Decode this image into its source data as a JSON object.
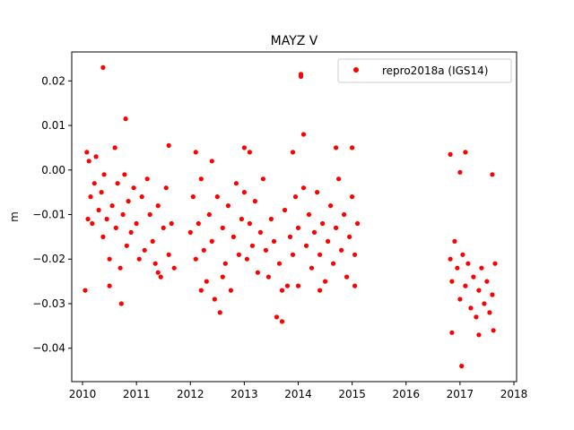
{
  "chart_data": {
    "type": "scatter",
    "title": "MAYZ V",
    "xlabel": "",
    "ylabel": "m",
    "xlim": [
      2009.8,
      2018.05
    ],
    "ylim": [
      -0.0475,
      0.0265
    ],
    "xticks": [
      2010,
      2011,
      2012,
      2013,
      2014,
      2015,
      2016,
      2017,
      2018
    ],
    "xtick_labels": [
      "2010",
      "2011",
      "2012",
      "2013",
      "2014",
      "2015",
      "2016",
      "2017",
      "2018"
    ],
    "yticks": [
      -0.04,
      -0.03,
      -0.02,
      -0.01,
      0.0,
      0.01,
      0.02
    ],
    "ytick_labels": [
      "−0.04",
      "−0.03",
      "−0.02",
      "−0.01",
      "0.00",
      "0.01",
      "0.02"
    ],
    "grid": false,
    "legend_position": "top-right",
    "color": "#ff0000",
    "series": [
      {
        "name": "repro2018a (IGS14)",
        "points": [
          [
            2010.08,
            0.004
          ],
          [
            2010.1,
            -0.011
          ],
          [
            2010.12,
            0.002
          ],
          [
            2010.15,
            -0.006
          ],
          [
            2010.18,
            -0.012
          ],
          [
            2010.22,
            -0.003
          ],
          [
            2010.25,
            0.003
          ],
          [
            2010.3,
            -0.009
          ],
          [
            2010.35,
            -0.005
          ],
          [
            2010.38,
            -0.015
          ],
          [
            2010.4,
            -0.001
          ],
          [
            2010.45,
            -0.011
          ],
          [
            2010.5,
            -0.02
          ],
          [
            2010.55,
            -0.008
          ],
          [
            2010.6,
            0.005
          ],
          [
            2010.62,
            -0.013
          ],
          [
            2010.65,
            -0.003
          ],
          [
            2010.7,
            -0.022
          ],
          [
            2010.72,
            -0.03
          ],
          [
            2010.75,
            -0.01
          ],
          [
            2010.78,
            -0.001
          ],
          [
            2010.82,
            -0.017
          ],
          [
            2010.85,
            -0.007
          ],
          [
            2010.9,
            -0.014
          ],
          [
            2010.95,
            -0.004
          ],
          [
            2011.0,
            -0.012
          ],
          [
            2011.05,
            -0.02
          ],
          [
            2011.1,
            -0.006
          ],
          [
            2011.15,
            -0.018
          ],
          [
            2011.2,
            -0.002
          ],
          [
            2011.25,
            -0.01
          ],
          [
            2011.3,
            -0.016
          ],
          [
            2011.35,
            -0.021
          ],
          [
            2011.4,
            -0.008
          ],
          [
            2011.45,
            -0.024
          ],
          [
            2011.5,
            -0.013
          ],
          [
            2011.55,
            -0.004
          ],
          [
            2011.6,
            -0.019
          ],
          [
            2011.65,
            -0.012
          ],
          [
            2011.7,
            -0.022
          ],
          [
            2012.0,
            -0.014
          ],
          [
            2012.05,
            -0.006
          ],
          [
            2012.1,
            -0.02
          ],
          [
            2012.15,
            -0.012
          ],
          [
            2012.2,
            -0.002
          ],
          [
            2012.25,
            -0.018
          ],
          [
            2012.3,
            -0.025
          ],
          [
            2012.35,
            -0.01
          ],
          [
            2012.4,
            -0.016
          ],
          [
            2012.45,
            -0.029
          ],
          [
            2012.5,
            -0.006
          ],
          [
            2012.55,
            -0.032
          ],
          [
            2012.6,
            -0.013
          ],
          [
            2012.65,
            -0.021
          ],
          [
            2012.7,
            -0.008
          ],
          [
            2012.75,
            -0.027
          ],
          [
            2012.8,
            -0.015
          ],
          [
            2012.85,
            -0.003
          ],
          [
            2012.9,
            -0.019
          ],
          [
            2012.95,
            -0.011
          ],
          [
            2013.0,
            -0.005
          ],
          [
            2013.05,
            -0.02
          ],
          [
            2013.1,
            -0.012
          ],
          [
            2013.15,
            -0.017
          ],
          [
            2013.2,
            -0.007
          ],
          [
            2013.25,
            -0.023
          ],
          [
            2013.3,
            -0.014
          ],
          [
            2013.35,
            -0.002
          ],
          [
            2013.4,
            -0.018
          ],
          [
            2013.45,
            -0.024
          ],
          [
            2013.5,
            -0.011
          ],
          [
            2013.55,
            -0.016
          ],
          [
            2013.6,
            -0.033
          ],
          [
            2013.65,
            -0.021
          ],
          [
            2013.7,
            -0.034
          ],
          [
            2013.75,
            -0.009
          ],
          [
            2013.8,
            -0.026
          ],
          [
            2013.85,
            -0.015
          ],
          [
            2013.9,
            -0.019
          ],
          [
            2013.95,
            -0.006
          ],
          [
            2014.0,
            -0.013
          ],
          [
            2014.05,
            0.021
          ],
          [
            2014.1,
            -0.004
          ],
          [
            2014.15,
            -0.017
          ],
          [
            2014.2,
            -0.01
          ],
          [
            2014.25,
            -0.022
          ],
          [
            2014.3,
            -0.014
          ],
          [
            2014.35,
            -0.005
          ],
          [
            2014.4,
            -0.019
          ],
          [
            2014.45,
            -0.012
          ],
          [
            2014.5,
            -0.025
          ],
          [
            2014.55,
            -0.016
          ],
          [
            2014.6,
            -0.008
          ],
          [
            2014.65,
            -0.021
          ],
          [
            2014.7,
            -0.013
          ],
          [
            2014.75,
            -0.002
          ],
          [
            2014.8,
            -0.018
          ],
          [
            2014.85,
            -0.01
          ],
          [
            2014.9,
            -0.024
          ],
          [
            2014.95,
            -0.015
          ],
          [
            2015.0,
            -0.006
          ],
          [
            2015.05,
            -0.019
          ],
          [
            2015.1,
            -0.012
          ],
          [
            2016.82,
            -0.02
          ],
          [
            2016.85,
            -0.025
          ],
          [
            2016.9,
            -0.016
          ],
          [
            2016.95,
            -0.022
          ],
          [
            2017.0,
            -0.029
          ],
          [
            2017.05,
            -0.019
          ],
          [
            2017.1,
            -0.026
          ],
          [
            2017.15,
            -0.021
          ],
          [
            2017.2,
            -0.031
          ],
          [
            2017.25,
            -0.024
          ],
          [
            2017.3,
            -0.033
          ],
          [
            2017.35,
            -0.027
          ],
          [
            2017.4,
            -0.022
          ],
          [
            2017.45,
            -0.03
          ],
          [
            2017.5,
            -0.025
          ],
          [
            2017.55,
            -0.032
          ],
          [
            2017.6,
            -0.028
          ],
          [
            2017.65,
            -0.021
          ]
        ],
        "outliers": [
          [
            2010.38,
            0.023
          ],
          [
            2010.8,
            0.0115
          ],
          [
            2011.6,
            0.0055
          ],
          [
            2013.0,
            0.005
          ],
          [
            2014.05,
            0.0215
          ],
          [
            2014.1,
            0.008
          ],
          [
            2014.7,
            0.005
          ],
          [
            2015.0,
            0.005
          ],
          [
            2016.82,
            0.0035
          ],
          [
            2017.1,
            0.004
          ],
          [
            2017.0,
            -0.0005
          ],
          [
            2017.6,
            -0.001
          ],
          [
            2016.85,
            -0.0365
          ],
          [
            2017.03,
            -0.044
          ],
          [
            2017.35,
            -0.037
          ],
          [
            2017.62,
            -0.036
          ],
          [
            2012.1,
            0.004
          ],
          [
            2012.4,
            0.002
          ],
          [
            2013.1,
            0.004
          ],
          [
            2013.9,
            0.004
          ],
          [
            2010.05,
            -0.027
          ],
          [
            2010.5,
            -0.026
          ],
          [
            2011.4,
            -0.023
          ],
          [
            2012.2,
            -0.027
          ],
          [
            2012.6,
            -0.024
          ],
          [
            2013.7,
            -0.027
          ],
          [
            2014.0,
            -0.026
          ],
          [
            2014.4,
            -0.027
          ],
          [
            2015.05,
            -0.026
          ]
        ]
      }
    ]
  }
}
